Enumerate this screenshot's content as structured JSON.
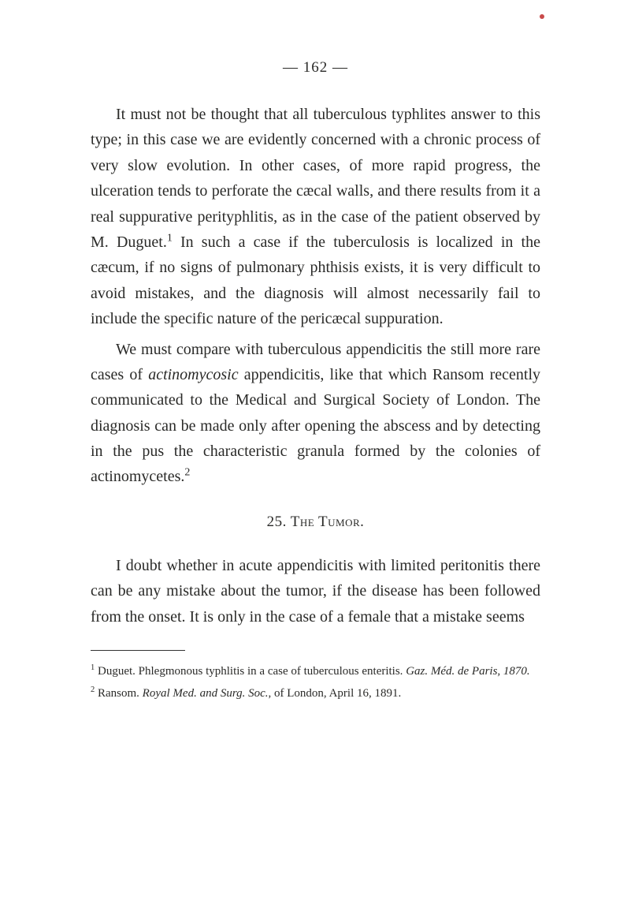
{
  "pageNumber": "— 162 —",
  "paragraphs": {
    "p1": "It must not be thought that all tuberculous typhlites answer to this type; in this case we are evidently concerned with a chronic process of very slow evolution. In other cases, of more rapid progress, the ulceration tends to perforate the cæcal walls, and there results from it a real suppurative perityphlitis, as in the case of the patient observed by M. Duguet.",
    "p1_sup": "1",
    "p1_cont": " In such a case if the tuberculosis is localized in the cæcum, if no signs of pulmonary phthisis exists, it is very difficult to avoid mistakes, and the diagnosis will almost necessarily fail to include the specific nature of the pericæcal suppuration.",
    "p2_a": "We must compare with tuberculous appendicitis the still more rare cases of ",
    "p2_italic": "actinomycosic",
    "p2_b": " appendicitis, like that which Ransom recently communicated to the Medical and Surgical Society of London. The diagnosis can be made only after opening the abscess and by detecting in the pus the characteristic granula formed by the colonies of actinomycetes.",
    "p2_sup": "2",
    "heading": "25. The Tumor.",
    "p3": "I doubt whether in acute appendicitis with limited peritonitis there can be any mistake about the tumor, if the disease has been followed from the onset. It is only in the case of a female that a mistake seems"
  },
  "footnotes": {
    "f1_sup": "1",
    "f1_a": " Duguet. Phlegmonous typhlitis in a case of tuberculous enteritis. ",
    "f1_italic": "Gaz. Méd. de Paris, 1870.",
    "f2_sup": "2",
    "f2_a": " Ransom. ",
    "f2_italic": "Royal Med. and Surg. Soc.",
    "f2_b": ", of London, April 16, 1891."
  }
}
